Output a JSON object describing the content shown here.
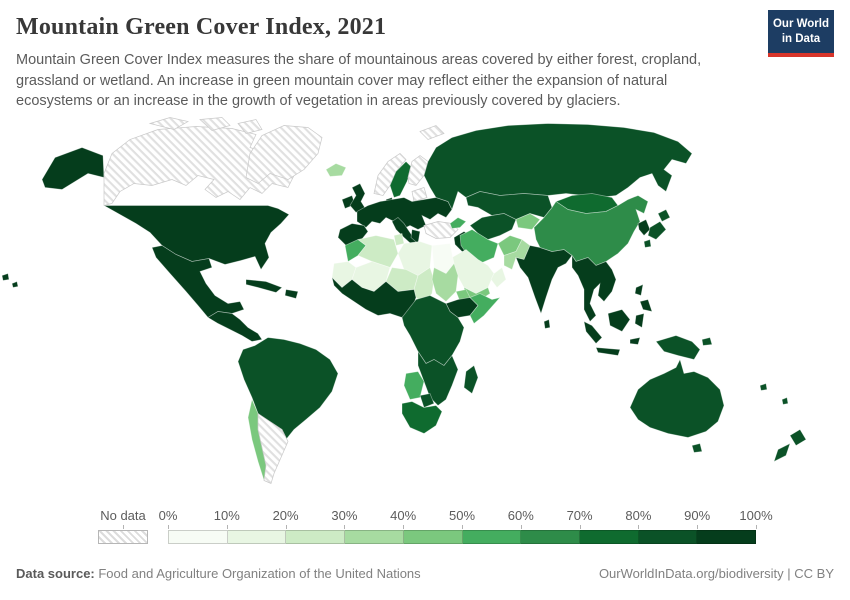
{
  "header": {
    "title": "Mountain Green Cover Index, 2021",
    "subtitle": "Mountain Green Cover Index measures the share of mountainous areas covered by either forest, cropland, grassland or wetland. An increase in green mountain cover may reflect either the expansion of natural ecosystems or an increase in the growth of vegetation in areas previously covered by glaciers.",
    "logo": {
      "line1": "Our World",
      "line2": "in Data",
      "bg_color": "#1d3d63",
      "accent_color": "#d8352a"
    }
  },
  "legend": {
    "no_data_label": "No data",
    "tick_labels": [
      "0%",
      "10%",
      "20%",
      "30%",
      "40%",
      "50%",
      "60%",
      "70%",
      "80%",
      "90%",
      "100%"
    ],
    "bin_colors": [
      "#f7fcf5",
      "#e8f6e3",
      "#cdebc5",
      "#a7dba1",
      "#7bc87e",
      "#44ad5f",
      "#2e8c49",
      "#0f6b2f",
      "#0b5227",
      "#053d1c"
    ]
  },
  "footer": {
    "source_label": "Data source:",
    "source_text": " Food and Agriculture Organization of the United Nations",
    "right_text": "OurWorldInData.org/biodiversity | CC BY"
  },
  "chart_data": {
    "type": "choropleth_map",
    "title": "Mountain Green Cover Index, 2021",
    "year": "2021",
    "unit": "%",
    "bins": [
      "0-10%",
      "10-20%",
      "20-30%",
      "30-40%",
      "40-50%",
      "50-60%",
      "60-70%",
      "70-80%",
      "80-90%",
      "90-100%"
    ],
    "bin_colors": [
      "#f7fcf5",
      "#e8f6e3",
      "#cdebc5",
      "#a7dba1",
      "#7bc87e",
      "#44ad5f",
      "#2e8c49",
      "#0f6b2f",
      "#0b5227",
      "#053d1c"
    ],
    "no_data_style": "diagonal-hatch",
    "legend_position": "bottom",
    "regions": {
      "canada": "no_data",
      "arctic_islands": "no_data",
      "greenland": "no_data",
      "svalbard": "no_data",
      "norway": "no_data",
      "finland": "no_data",
      "baltics": "no_data",
      "turkey": "no_data",
      "argentina": "no_data",
      "egypt": 0,
      "saudi_arabia": 1,
      "libya": 1,
      "oman": 1,
      "mauritania_wsahara": 1,
      "mali": 1,
      "algeria": 2,
      "tunisia": 2,
      "niger": 2,
      "chad": 2,
      "pakistan": 3,
      "iceland": 3,
      "sudan": 3,
      "chile": 4,
      "afghanistan": 4,
      "yemen": 4,
      "kyrgyz_tajik": 4,
      "eritrea": 4,
      "iran": 5,
      "caucasus": 5,
      "morocco": 5,
      "somalia": 5,
      "namibia": 5,
      "china": 6,
      "sweden": 7,
      "mongolia": 7,
      "south_africa": 7,
      "russia": 8,
      "kazakhstan": 8,
      "uzbek_turkmen": 8,
      "south_america_north": 8,
      "japan": 8,
      "australia": 8,
      "tasmania": 8,
      "new_zealand": 8,
      "papua_new_guinea": 8,
      "pacific_islands": 8,
      "central_africa": 8,
      "southern_africa": 8,
      "botswana": 8,
      "madagascar": 8,
      "usa": 9,
      "alaska": 9,
      "hawaii": 9,
      "mexico": 9,
      "central_america": 9,
      "cuba": 9,
      "hispaniola": 9,
      "europe_main": 9,
      "iberia": 9,
      "italy": 9,
      "greece": 9,
      "uk": 9,
      "ireland": 9,
      "denmark": 9,
      "syria_iraq": 9,
      "india": 9,
      "sri_lanka": 9,
      "korea": 9,
      "se_asia": 9,
      "philippines": 9,
      "indonesia": 9,
      "west_africa": 9,
      "ethiopia": 9
    }
  }
}
